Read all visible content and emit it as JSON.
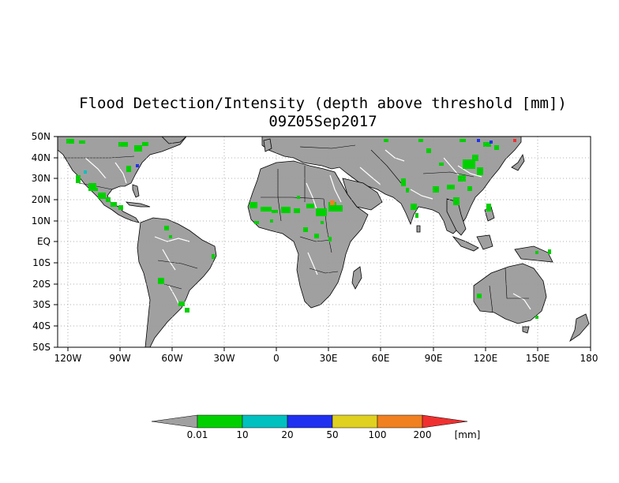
{
  "title_line1": "Flood Detection/Intensity (depth above threshold [mm])",
  "title_line2": "09Z05Sep2017",
  "lat_labels": [
    "50N",
    "40N",
    "30N",
    "20N",
    "10N",
    "EQ",
    "10S",
    "20S",
    "30S",
    "40S",
    "50S"
  ],
  "lon_labels": [
    "120W",
    "90W",
    "60W",
    "30W",
    "0",
    "30E",
    "60E",
    "90E",
    "120E",
    "150E",
    "180"
  ],
  "legend": {
    "labels": [
      "0.01",
      "10",
      "20",
      "50",
      "100",
      "200"
    ],
    "unit": "[mm]",
    "colors": [
      "#a0a0a0",
      "#00d000",
      "#00c0c0",
      "#2030f0",
      "#e0d020",
      "#f08020",
      "#f03030"
    ]
  },
  "colors": {
    "land": "#a0a0a0",
    "ocean": "#ffffff",
    "river": "#ffffff",
    "gridline": "#999999",
    "flood_light": "#00d000"
  }
}
